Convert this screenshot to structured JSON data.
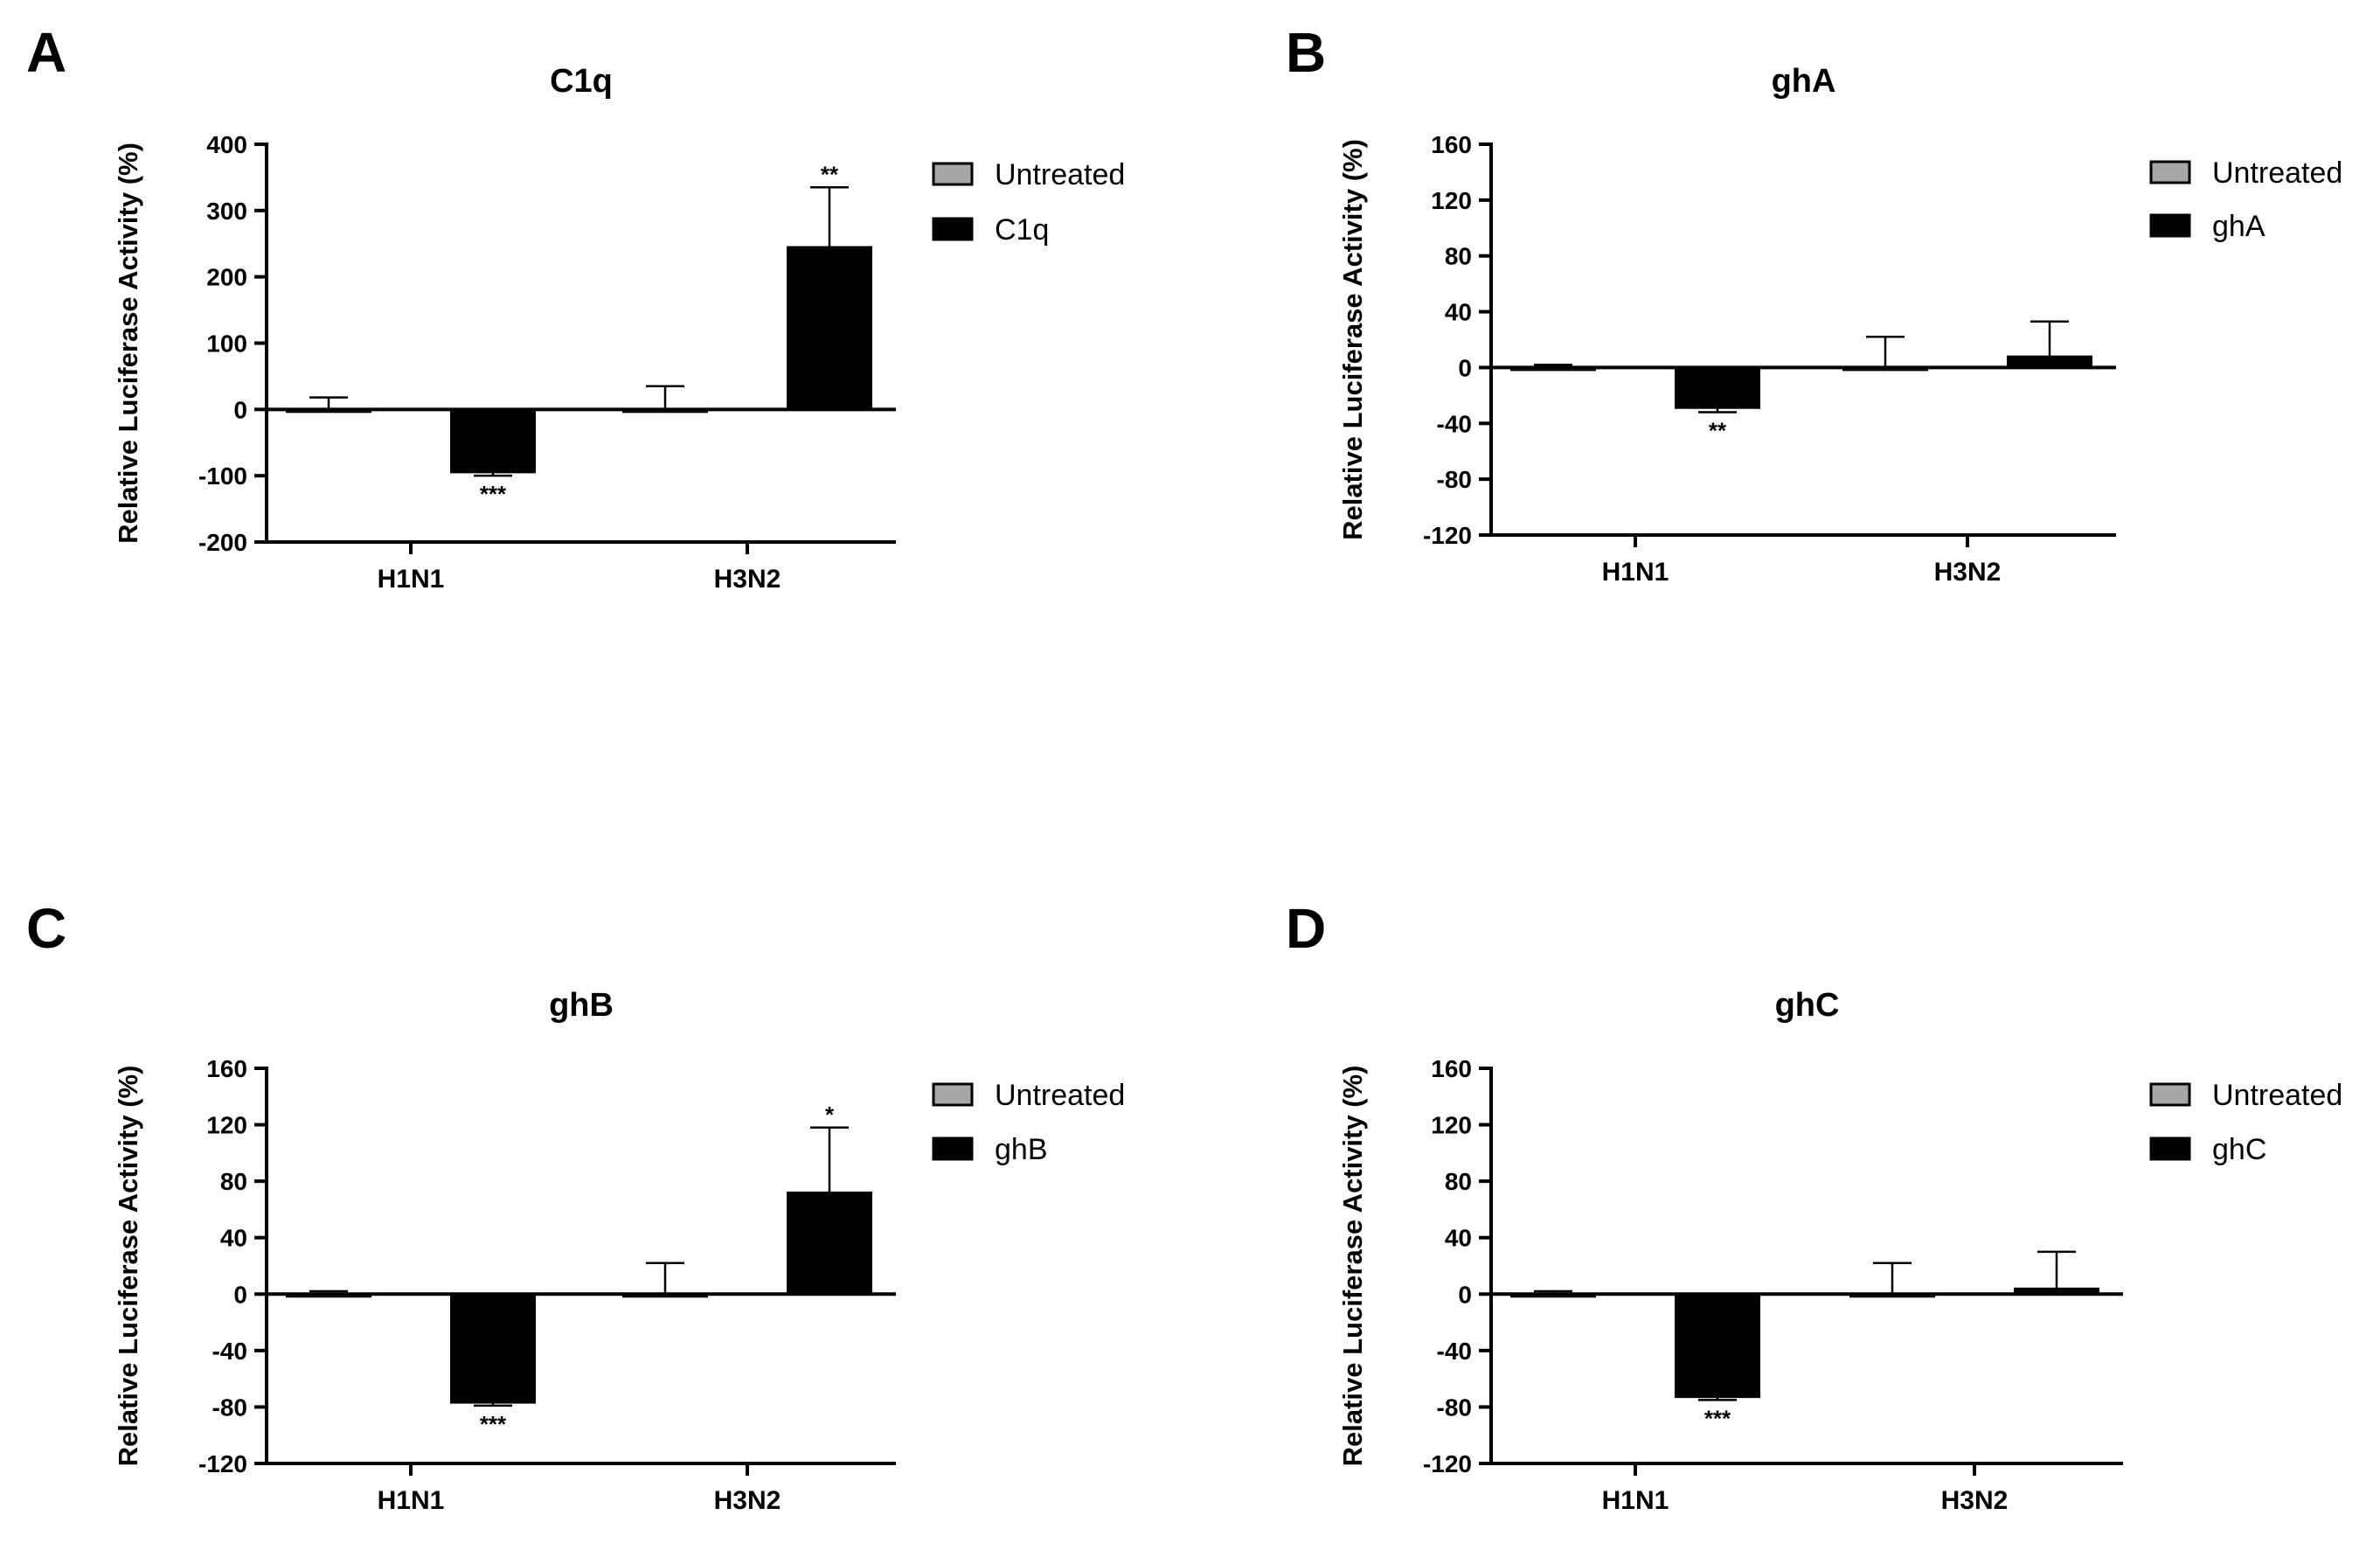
{
  "colors": {
    "untreated": "#a6a6a6",
    "treated": "#000000",
    "axis": "#000000"
  },
  "chart_data": [
    {
      "panel": "A",
      "type": "bar",
      "title": "C1q",
      "ylabel": "Relative Luciferase Activity (%)",
      "xlabel": "",
      "categories": [
        "H1N1",
        "H3N2"
      ],
      "ylim": [
        -200,
        400
      ],
      "yticks": [
        400,
        300,
        200,
        100,
        0,
        -100,
        -200
      ],
      "ytick_labels": [
        "400",
        "300",
        "200",
        "100",
        "0",
        "-100",
        "-200"
      ],
      "legend_position": "top-right",
      "series": [
        {
          "name": "Untreated",
          "values": [
            0,
            0
          ],
          "errors": [
            18,
            35
          ],
          "significance": [
            "",
            ""
          ]
        },
        {
          "name": "C1q",
          "values": [
            -95,
            245
          ],
          "errors": [
            5,
            90
          ],
          "significance": [
            "***",
            "**"
          ]
        }
      ]
    },
    {
      "panel": "B",
      "type": "bar",
      "title": "ghA",
      "ylabel": "Relative Luciferase Activity (%)",
      "xlabel": "",
      "categories": [
        "H1N1",
        "H3N2"
      ],
      "ylim": [
        -120,
        160
      ],
      "yticks": [
        160,
        120,
        80,
        40,
        0,
        -40,
        -80,
        -120
      ],
      "ytick_labels": [
        "160",
        "120",
        "80",
        "40",
        "0",
        "-40",
        "-80",
        "-120"
      ],
      "legend_position": "top-right",
      "series": [
        {
          "name": "Untreated",
          "values": [
            0,
            0
          ],
          "errors": [
            2,
            22
          ],
          "significance": [
            "",
            ""
          ]
        },
        {
          "name": "ghA",
          "values": [
            -29,
            8
          ],
          "errors": [
            3,
            25
          ],
          "significance": [
            "**",
            ""
          ]
        }
      ]
    },
    {
      "panel": "C",
      "type": "bar",
      "title": "ghB",
      "ylabel": "Relative Luciferase Activity (%)",
      "xlabel": "",
      "categories": [
        "H1N1",
        "H3N2"
      ],
      "ylim": [
        -120,
        160
      ],
      "yticks": [
        160,
        120,
        80,
        40,
        0,
        -40,
        -80,
        -120
      ],
      "ytick_labels": [
        "160",
        "120",
        "80",
        "40",
        "0",
        "-40",
        "-80",
        "-120"
      ],
      "legend_position": "top-right",
      "series": [
        {
          "name": "Untreated",
          "values": [
            0,
            0
          ],
          "errors": [
            2,
            22
          ],
          "significance": [
            "",
            ""
          ]
        },
        {
          "name": "ghB",
          "values": [
            -77,
            72
          ],
          "errors": [
            2,
            46
          ],
          "significance": [
            "***",
            "*"
          ]
        }
      ]
    },
    {
      "panel": "D",
      "type": "bar",
      "title": "ghC",
      "ylabel": "Relative Luciferase Activity (%)",
      "xlabel": "",
      "categories": [
        "H1N1",
        "H3N2"
      ],
      "ylim": [
        -120,
        160
      ],
      "yticks": [
        160,
        120,
        80,
        40,
        0,
        -40,
        -80,
        -120
      ],
      "ytick_labels": [
        "160",
        "120",
        "80",
        "40",
        "0",
        "-40",
        "-80",
        "-120"
      ],
      "legend_position": "top-right",
      "series": [
        {
          "name": "Untreated",
          "values": [
            0,
            0
          ],
          "errors": [
            2,
            22
          ],
          "significance": [
            "",
            ""
          ]
        },
        {
          "name": "ghC",
          "values": [
            -73,
            4
          ],
          "errors": [
            2,
            26
          ],
          "significance": [
            "***",
            ""
          ]
        }
      ]
    }
  ]
}
